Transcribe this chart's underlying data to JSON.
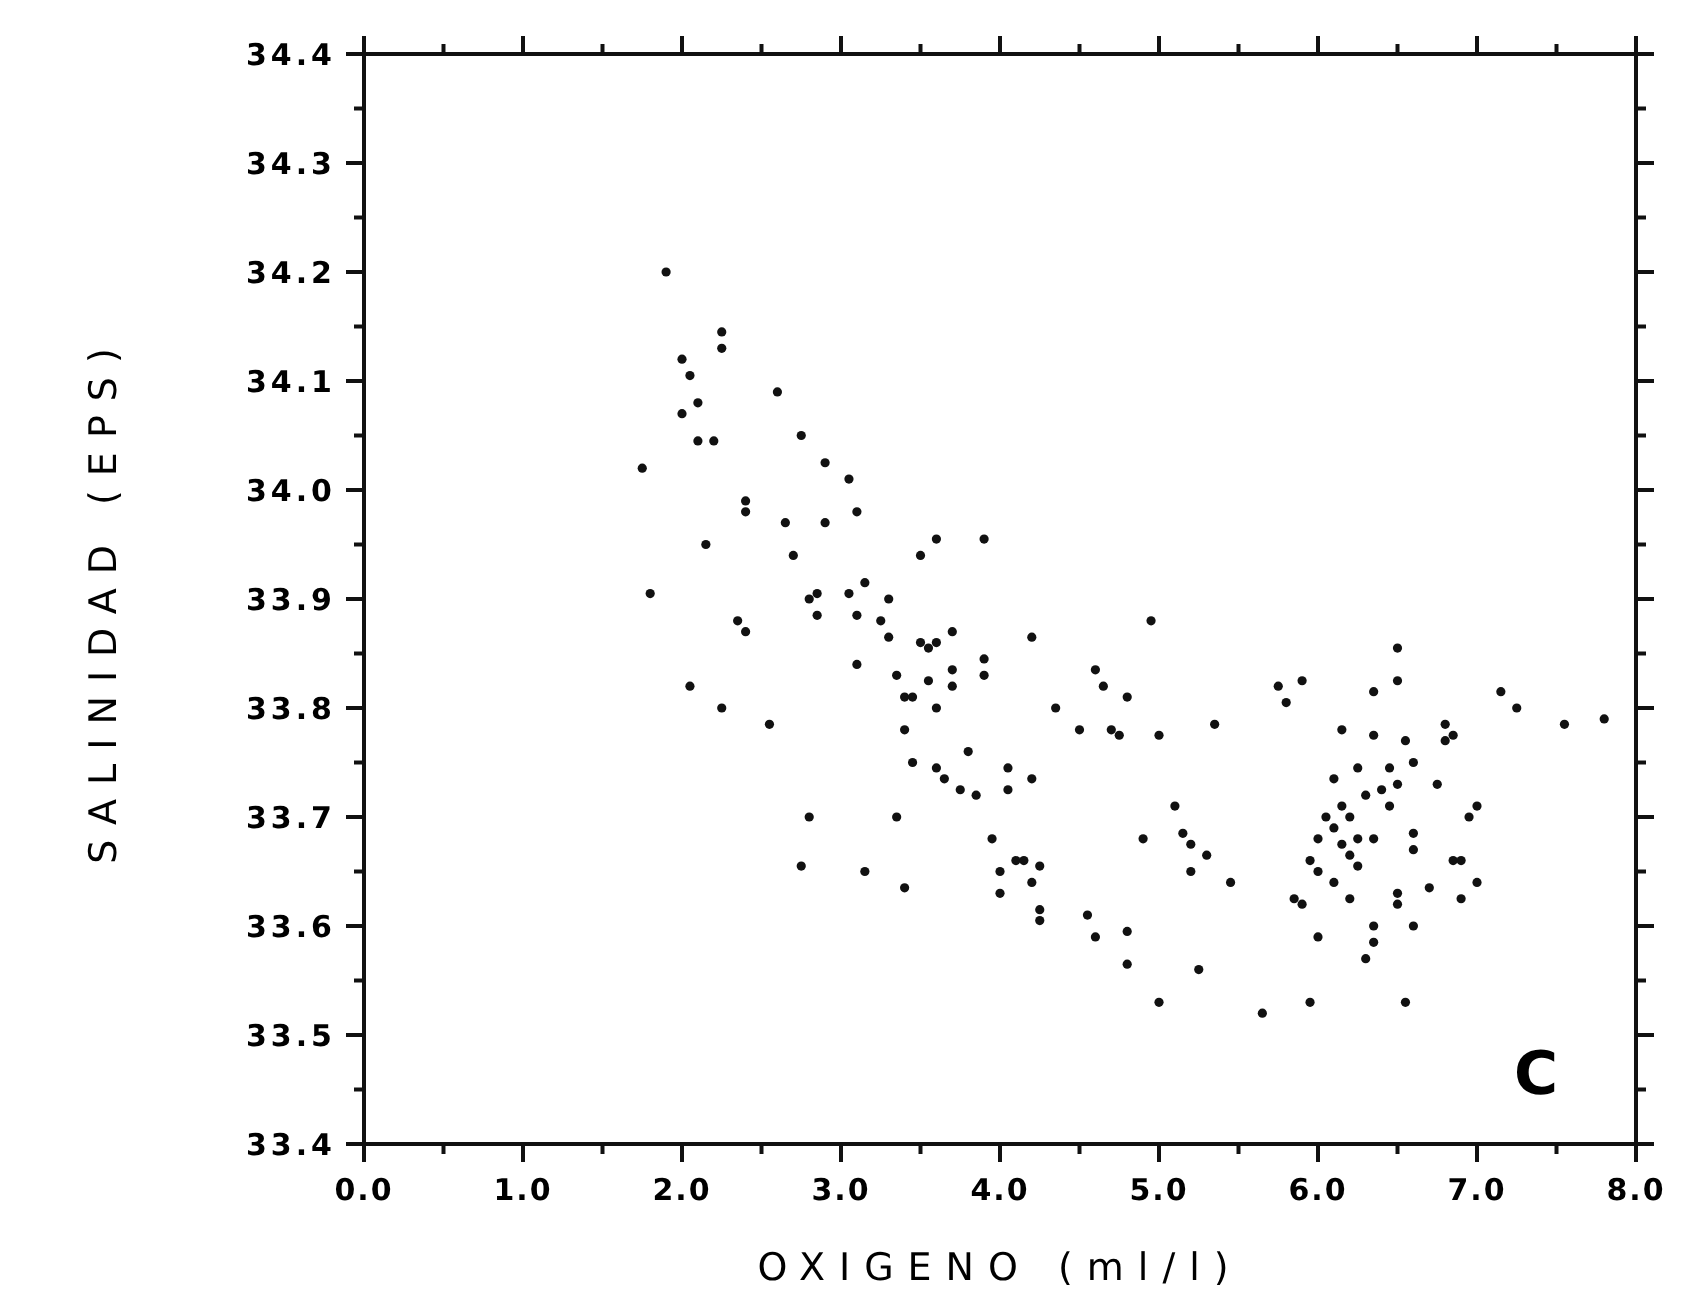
{
  "chart_data": {
    "type": "scatter",
    "xlabel": "OXIGENO (ml/l)",
    "ylabel": "SALINIDAD (EPS)",
    "annotations": [
      "C"
    ],
    "marker": "circle",
    "grid": false,
    "xlim": [
      0,
      8
    ],
    "ylim": [
      33.4,
      34.4
    ],
    "xticks": [
      {
        "value": 0,
        "label": "0.0"
      },
      {
        "value": 0.5,
        "label": null
      },
      {
        "value": 1,
        "label": "1.0"
      },
      {
        "value": 1.5,
        "label": null
      },
      {
        "value": 2,
        "label": "2.0"
      },
      {
        "value": 2.5,
        "label": null
      },
      {
        "value": 3,
        "label": "3.0"
      },
      {
        "value": 3.5,
        "label": null
      },
      {
        "value": 4,
        "label": "4.0"
      },
      {
        "value": 4.5,
        "label": null
      },
      {
        "value": 5,
        "label": "5.0"
      },
      {
        "value": 5.5,
        "label": null
      },
      {
        "value": 6,
        "label": "6.0"
      },
      {
        "value": 6.5,
        "label": null
      },
      {
        "value": 7,
        "label": "7.0"
      },
      {
        "value": 7.5,
        "label": null
      },
      {
        "value": 8,
        "label": "8.0"
      }
    ],
    "yticks": [
      {
        "value": 33.4,
        "label": "33.4"
      },
      {
        "value": 33.45,
        "label": null
      },
      {
        "value": 33.5,
        "label": "33.5"
      },
      {
        "value": 33.55,
        "label": null
      },
      {
        "value": 33.6,
        "label": "33.6"
      },
      {
        "value": 33.65,
        "label": null
      },
      {
        "value": 33.7,
        "label": "33.7"
      },
      {
        "value": 33.75,
        "label": null
      },
      {
        "value": 33.8,
        "label": "33.8"
      },
      {
        "value": 33.85,
        "label": null
      },
      {
        "value": 33.9,
        "label": "33.9"
      },
      {
        "value": 33.95,
        "label": null
      },
      {
        "value": 34.0,
        "label": "34.0"
      },
      {
        "value": 34.05,
        "label": null
      },
      {
        "value": 34.1,
        "label": "34.1"
      },
      {
        "value": 34.15,
        "label": null
      },
      {
        "value": 34.2,
        "label": "34.2"
      },
      {
        "value": 34.25,
        "label": null
      },
      {
        "value": 34.3,
        "label": "34.3"
      },
      {
        "value": 34.35,
        "label": null
      },
      {
        "value": 34.4,
        "label": "34.4"
      }
    ],
    "series": [
      {
        "color": "#111111",
        "x": [
          1.9,
          1.75,
          1.8,
          2.0,
          2.05,
          2.0,
          2.1,
          2.1,
          2.2,
          2.25,
          2.25,
          2.15,
          2.05,
          2.25,
          2.35,
          2.4,
          2.4,
          2.4,
          2.55,
          2.6,
          2.65,
          2.7,
          2.75,
          2.8,
          2.85,
          2.85,
          2.9,
          2.9,
          2.8,
          2.75,
          3.05,
          3.1,
          3.05,
          3.1,
          3.15,
          3.1,
          3.15,
          3.25,
          3.3,
          3.3,
          3.35,
          3.4,
          3.4,
          3.45,
          3.45,
          3.35,
          3.4,
          3.5,
          3.6,
          3.5,
          3.55,
          3.6,
          3.55,
          3.6,
          3.6,
          3.65,
          3.7,
          3.7,
          3.7,
          3.75,
          3.8,
          3.85,
          3.9,
          3.9,
          3.9,
          3.95,
          4.0,
          4.05,
          4.05,
          4.0,
          4.1,
          4.15,
          4.2,
          4.2,
          4.2,
          4.25,
          4.25,
          4.25,
          4.35,
          4.5,
          4.55,
          4.6,
          4.6,
          4.65,
          4.7,
          4.75,
          4.8,
          4.8,
          4.8,
          4.9,
          4.95,
          5.0,
          5.0,
          5.1,
          5.15,
          5.2,
          5.2,
          5.25,
          5.3,
          5.35,
          5.45,
          5.65,
          5.75,
          5.8,
          5.85,
          5.9,
          5.9,
          5.95,
          5.95,
          6.0,
          6.0,
          6.0,
          6.05,
          6.1,
          6.1,
          6.1,
          6.15,
          6.15,
          6.15,
          6.2,
          6.2,
          6.2,
          6.25,
          6.25,
          6.25,
          6.3,
          6.3,
          6.35,
          6.35,
          6.35,
          6.35,
          6.35,
          6.4,
          6.45,
          6.45,
          6.5,
          6.5,
          6.5,
          6.5,
          6.5,
          6.55,
          6.55,
          6.6,
          6.6,
          6.6,
          6.6,
          6.7,
          6.75,
          6.8,
          6.8,
          6.85,
          6.85,
          6.9,
          6.9,
          6.95,
          7.0,
          7.0,
          7.15,
          7.25,
          7.55,
          7.8
        ],
        "values": [
          34.2,
          34.02,
          33.905,
          34.12,
          34.105,
          34.07,
          34.08,
          34.045,
          34.045,
          34.145,
          34.13,
          33.95,
          33.82,
          33.8,
          33.88,
          33.87,
          33.99,
          33.98,
          33.785,
          34.09,
          33.97,
          33.94,
          34.05,
          33.9,
          33.905,
          33.885,
          34.025,
          33.97,
          33.7,
          33.655,
          34.01,
          33.98,
          33.905,
          33.885,
          33.915,
          33.84,
          33.65,
          33.88,
          33.9,
          33.865,
          33.83,
          33.81,
          33.78,
          33.81,
          33.75,
          33.7,
          33.635,
          33.94,
          33.955,
          33.86,
          33.855,
          33.86,
          33.825,
          33.8,
          33.745,
          33.735,
          33.87,
          33.835,
          33.82,
          33.725,
          33.76,
          33.72,
          33.955,
          33.845,
          33.83,
          33.68,
          33.65,
          33.745,
          33.725,
          33.63,
          33.66,
          33.66,
          33.865,
          33.735,
          33.64,
          33.655,
          33.615,
          33.605,
          33.8,
          33.78,
          33.61,
          33.835,
          33.59,
          33.82,
          33.78,
          33.775,
          33.81,
          33.595,
          33.565,
          33.68,
          33.88,
          33.775,
          33.53,
          33.71,
          33.685,
          33.675,
          33.65,
          33.56,
          33.665,
          33.785,
          33.64,
          33.52,
          33.82,
          33.805,
          33.625,
          33.825,
          33.62,
          33.53,
          33.66,
          33.68,
          33.65,
          33.59,
          33.7,
          33.735,
          33.69,
          33.64,
          33.78,
          33.71,
          33.675,
          33.665,
          33.625,
          33.7,
          33.745,
          33.68,
          33.655,
          33.72,
          33.57,
          33.815,
          33.775,
          33.68,
          33.6,
          33.585,
          33.725,
          33.745,
          33.71,
          33.855,
          33.825,
          33.73,
          33.63,
          33.62,
          33.77,
          33.53,
          33.75,
          33.685,
          33.67,
          33.6,
          33.635,
          33.73,
          33.785,
          33.77,
          33.775,
          33.66,
          33.66,
          33.625,
          33.7,
          33.71,
          33.64,
          33.815,
          33.8,
          33.785,
          33.79
        ]
      }
    ]
  }
}
